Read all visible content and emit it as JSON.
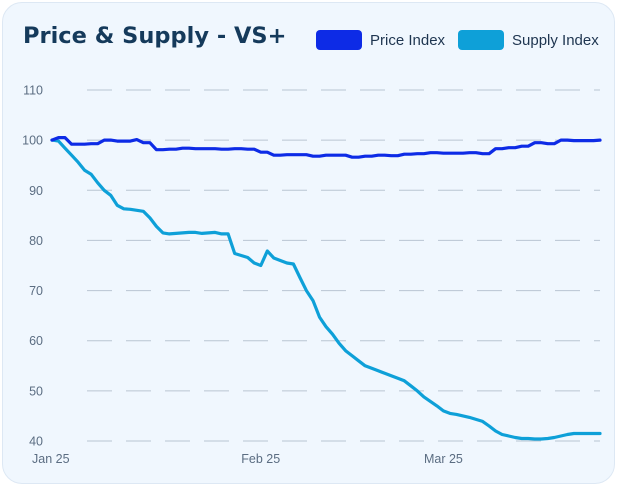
{
  "chart_data": {
    "type": "line",
    "title": "Price & Supply - VS+",
    "xlabel": "",
    "ylabel": "",
    "ylim": [
      40,
      110
    ],
    "yticks": [
      40,
      50,
      60,
      70,
      80,
      90,
      100,
      110
    ],
    "grid": "horizontal dashed",
    "legend": "top-right",
    "x_tick_labels": [
      {
        "label": "Jan 25",
        "index": 0
      },
      {
        "label": "Feb 25",
        "index": 32
      },
      {
        "label": "Mar 25",
        "index": 60
      }
    ],
    "x_count": 85,
    "series": [
      {
        "name": "Price Index",
        "color": "#0d2be6",
        "values": [
          100.0,
          100.5,
          100.5,
          99.2,
          99.2,
          99.2,
          99.3,
          99.3,
          100.0,
          100.0,
          99.8,
          99.8,
          99.8,
          100.1,
          99.5,
          99.5,
          98.1,
          98.1,
          98.2,
          98.2,
          98.4,
          98.4,
          98.3,
          98.3,
          98.3,
          98.3,
          98.2,
          98.2,
          98.3,
          98.3,
          98.2,
          98.2,
          97.6,
          97.6,
          97.0,
          97.0,
          97.1,
          97.1,
          97.1,
          97.1,
          96.8,
          96.8,
          97.0,
          97.0,
          97.0,
          97.0,
          96.6,
          96.6,
          96.8,
          96.8,
          97.0,
          97.0,
          96.9,
          96.9,
          97.2,
          97.2,
          97.3,
          97.3,
          97.5,
          97.5,
          97.4,
          97.4,
          97.4,
          97.4,
          97.5,
          97.5,
          97.3,
          97.3,
          98.3,
          98.3,
          98.5,
          98.5,
          98.8,
          98.8,
          99.5,
          99.5,
          99.3,
          99.3,
          100.0,
          100.0,
          99.9,
          99.9,
          99.9,
          99.9,
          100.0
        ]
      },
      {
        "name": "Supply Index",
        "color": "#0ea0d8",
        "values": [
          100.0,
          99.8,
          98.4,
          97.0,
          95.6,
          94.0,
          93.2,
          91.5,
          90.0,
          89.0,
          87.0,
          86.3,
          86.2,
          86.0,
          85.8,
          84.5,
          82.8,
          81.5,
          81.3,
          81.4,
          81.5,
          81.6,
          81.6,
          81.4,
          81.5,
          81.6,
          81.3,
          81.3,
          77.4,
          77.0,
          76.6,
          75.5,
          75.0,
          77.9,
          76.5,
          76.0,
          75.5,
          75.3,
          72.6,
          70.0,
          68.0,
          64.7,
          62.8,
          61.3,
          59.5,
          58.0,
          57.0,
          56.0,
          55.0,
          54.5,
          54.0,
          53.5,
          53.0,
          52.5,
          52.0,
          51.0,
          50.0,
          48.8,
          47.9,
          47.0,
          46.0,
          45.5,
          45.3,
          45.0,
          44.7,
          44.3,
          43.9,
          43.0,
          42.0,
          41.3,
          41.0,
          40.7,
          40.5,
          40.5,
          40.4,
          40.4,
          40.5,
          40.7,
          41.0,
          41.3,
          41.5,
          41.5,
          41.5,
          41.5,
          41.5
        ]
      }
    ]
  }
}
